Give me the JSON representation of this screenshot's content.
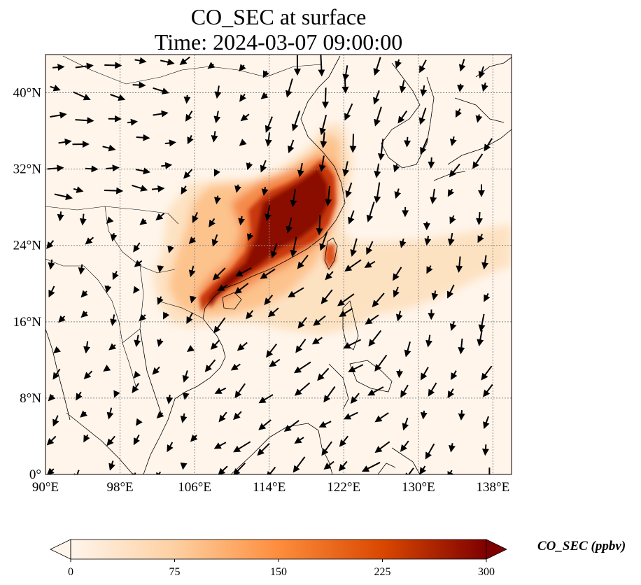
{
  "title": {
    "line1": "CO_SEC at surface",
    "line2": "Time: 2024-03-07 09:00:00"
  },
  "map": {
    "extent": {
      "lon": [
        90,
        140
      ],
      "lat": [
        0,
        44
      ]
    },
    "lon_ticks": [
      {
        "value": 90,
        "label": "90°E"
      },
      {
        "value": 98,
        "label": "98°E"
      },
      {
        "value": 106,
        "label": "106°E"
      },
      {
        "value": 114,
        "label": "114°E"
      },
      {
        "value": 122,
        "label": "122°E"
      },
      {
        "value": 130,
        "label": "130°E"
      },
      {
        "value": 138,
        "label": "138°E"
      }
    ],
    "lat_ticks": [
      {
        "value": 0,
        "label": "0°"
      },
      {
        "value": 8,
        "label": "8°N"
      },
      {
        "value": 16,
        "label": "16°N"
      },
      {
        "value": 24,
        "label": "24°N"
      },
      {
        "value": 32,
        "label": "32°N"
      },
      {
        "value": 40,
        "label": "40°N"
      }
    ],
    "gridlines": true,
    "wind_vectors": true
  },
  "colorbar": {
    "label": "CO_SEC (ppbv)",
    "min": 0,
    "max": 300,
    "ticks": [
      "0",
      "75",
      "150",
      "225",
      "300"
    ],
    "extend": "both",
    "colormap": [
      "#fff5eb",
      "#fdd0a2",
      "#fd8d3c",
      "#d94801",
      "#7f0000"
    ]
  }
}
